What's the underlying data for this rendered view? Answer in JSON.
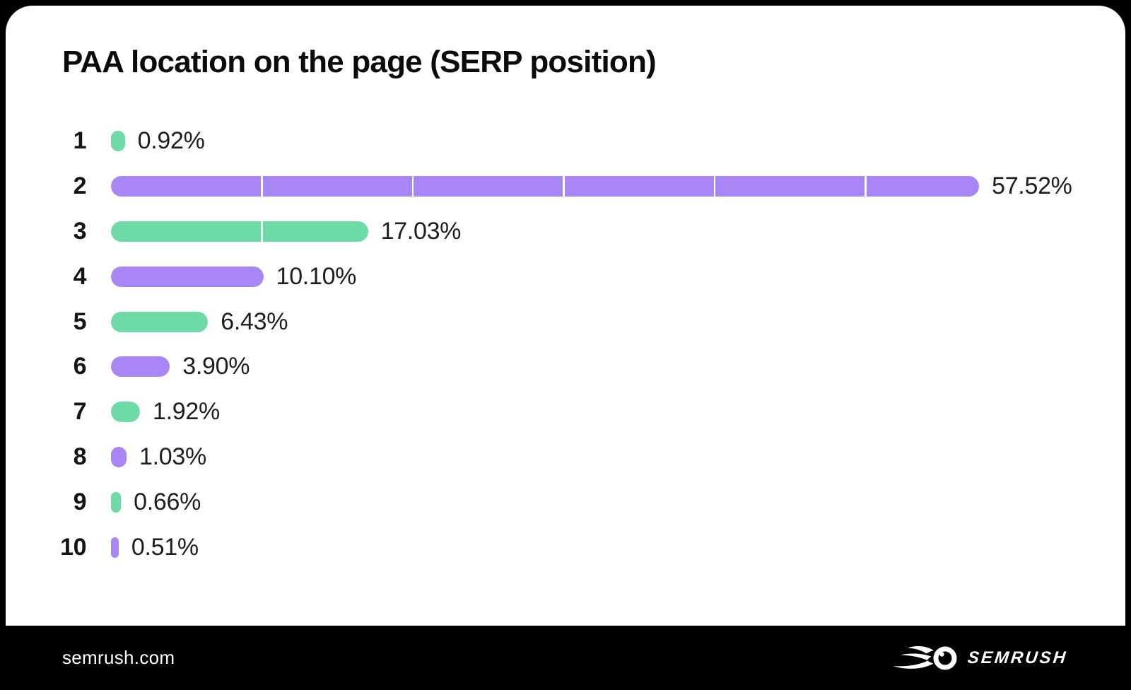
{
  "page": {
    "background": "#000000",
    "card_background": "#ffffff"
  },
  "header": {
    "title": "PAA location on the page (SERP position)"
  },
  "chart_data": {
    "type": "bar",
    "orientation": "horizontal",
    "title": "PAA location on the page (SERP position)",
    "categories": [
      "1",
      "2",
      "3",
      "4",
      "5",
      "6",
      "7",
      "8",
      "9",
      "10"
    ],
    "values": [
      0.92,
      57.52,
      17.03,
      10.1,
      6.43,
      3.9,
      1.92,
      1.03,
      0.66,
      0.51
    ],
    "value_labels": [
      "0.92%",
      "57.52%",
      "17.03%",
      "10.10%",
      "6.43%",
      "3.90%",
      "1.92%",
      "1.03%",
      "0.66%",
      "0.51%"
    ],
    "bar_colors": [
      "#6EDAA6",
      "#A886F6",
      "#6EDAA6",
      "#A886F6",
      "#6EDAA6",
      "#A886F6",
      "#6EDAA6",
      "#A886F6",
      "#6EDAA6",
      "#A886F6"
    ],
    "palette": {
      "green": "#6EDAA6",
      "purple": "#A886F6",
      "segment_divider": "#FFFFFF",
      "text": "#1E1E1E"
    },
    "xlim": [
      0,
      60
    ],
    "segment_interval_percent": 10,
    "grid": "white segment dividers every 10% inside bars",
    "legend": "none",
    "xlabel": "",
    "ylabel": ""
  },
  "footer": {
    "site": "semrush.com",
    "brand_wordmark": "SEMRUSH",
    "logo_icon": "semrush-flame-ball-icon"
  }
}
